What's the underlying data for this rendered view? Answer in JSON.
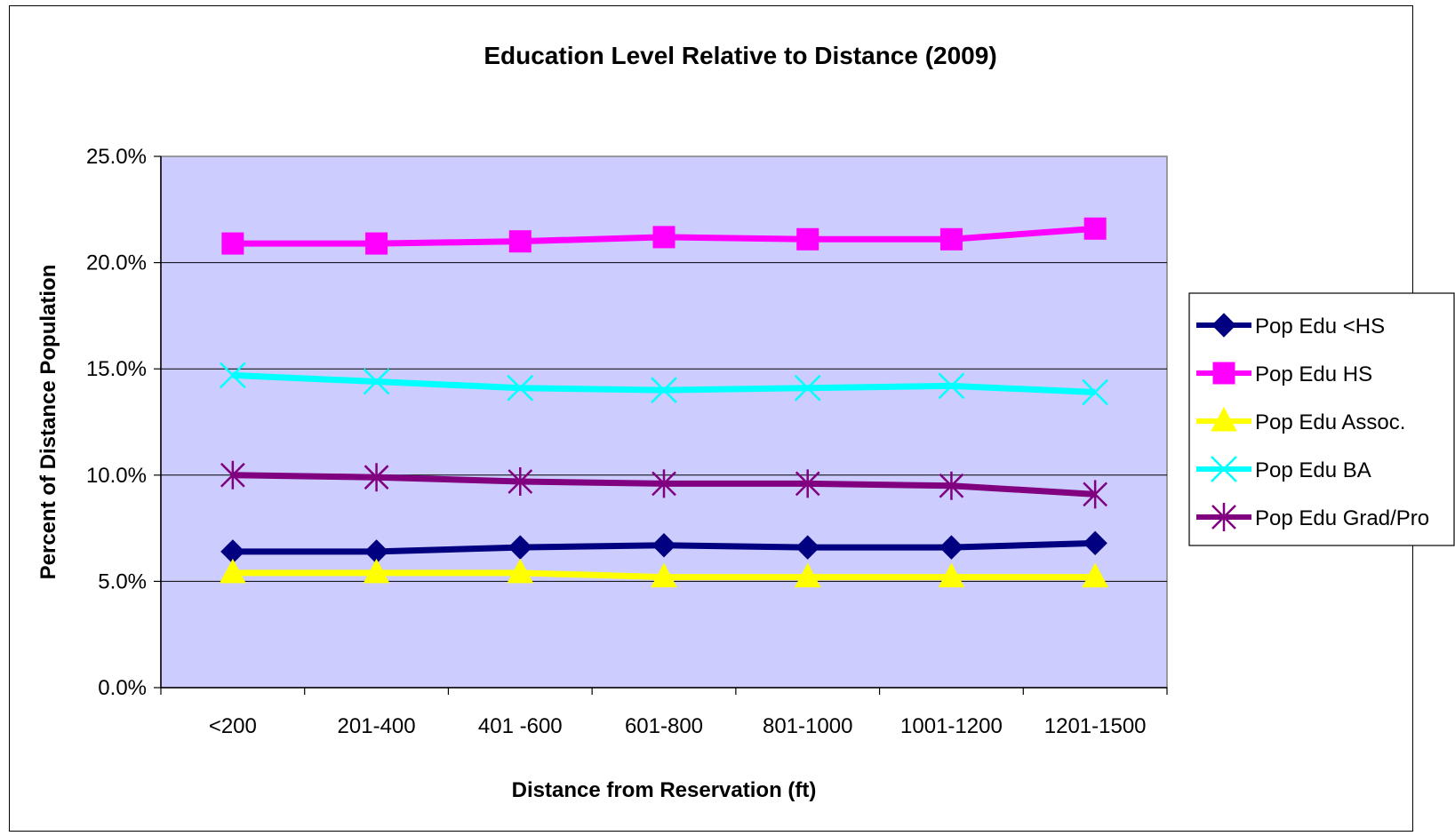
{
  "chart_data": {
    "type": "line",
    "title": "Education Level Relative to Distance (2009)",
    "xlabel": "Distance from Reservation (ft)",
    "ylabel": "Percent of Distance Population",
    "categories": [
      "<200",
      "201-400",
      "401 -600",
      "601-800",
      "801-1000",
      "1001-1200",
      "1201-1500"
    ],
    "ylim": [
      0,
      25
    ],
    "yticks": [
      "0.0%",
      "5.0%",
      "10.0%",
      "15.0%",
      "20.0%",
      "25.0%"
    ],
    "grid": true,
    "legend_position": "right",
    "plot_background": "#ccccff",
    "series": [
      {
        "name": "Pop Edu <HS",
        "color": "#000080",
        "marker": "diamond",
        "values": [
          6.4,
          6.4,
          6.6,
          6.7,
          6.6,
          6.6,
          6.8
        ]
      },
      {
        "name": "Pop Edu HS",
        "color": "#ff00ff",
        "marker": "square",
        "values": [
          20.9,
          20.9,
          21.0,
          21.2,
          21.1,
          21.1,
          21.6
        ]
      },
      {
        "name": "Pop Edu Assoc.",
        "color": "#ffff00",
        "marker": "triangle",
        "values": [
          5.4,
          5.4,
          5.4,
          5.2,
          5.2,
          5.2,
          5.2
        ]
      },
      {
        "name": "Pop Edu BA",
        "color": "#00ffff",
        "marker": "x",
        "values": [
          14.7,
          14.4,
          14.1,
          14.0,
          14.1,
          14.2,
          13.9
        ]
      },
      {
        "name": "Pop Edu Grad/Pro",
        "color": "#800080",
        "marker": "star",
        "values": [
          10.0,
          9.9,
          9.7,
          9.6,
          9.6,
          9.5,
          9.1
        ]
      }
    ]
  }
}
